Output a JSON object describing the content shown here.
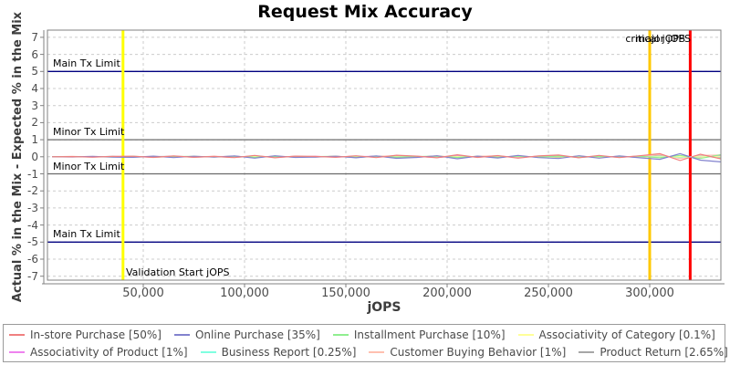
{
  "title": "Request Mix Accuracy",
  "x_axis": {
    "label": "jOPS",
    "tick_values": [
      50000,
      100000,
      150000,
      200000,
      250000,
      300000
    ],
    "tick_labels": [
      "50,000",
      "100,000",
      "150,000",
      "200,000",
      "250,000",
      "300,000"
    ]
  },
  "y_axis": {
    "label": "Actual % in the Mix - Expected % in the Mix",
    "tick_values": [
      7,
      6,
      5,
      4,
      3,
      2,
      1,
      0,
      -1,
      -2,
      -3,
      -4,
      -5,
      -6,
      -7
    ],
    "tick_labels": [
      "7",
      "6",
      "5",
      "4",
      "3",
      "2",
      "1",
      "0",
      "-1",
      "-2",
      "-3",
      "-4",
      "-5",
      "-6",
      "-7"
    ]
  },
  "markers": {
    "horizontal": [
      {
        "label": "Main Tx Limit",
        "value": 5,
        "color": "#000080"
      },
      {
        "label": "Minor Tx Limit",
        "value": 1,
        "color": "#6b6b6b"
      },
      {
        "label": "Minor Tx Limit",
        "value": -1,
        "color": "#6b6b6b"
      },
      {
        "label": "Main Tx Limit",
        "value": -5,
        "color": "#000080"
      }
    ],
    "vertical": [
      {
        "label": "Validation Start jOPS",
        "value": 40000,
        "color": "#ffff00"
      },
      {
        "label": "major jOPS",
        "value": 300000,
        "color": "#ffc800"
      },
      {
        "label": "critical jOPS",
        "value": 320000,
        "color": "#ff0000"
      }
    ]
  },
  "chart_data": {
    "type": "line",
    "title": "Request Mix Accuracy",
    "xlabel": "jOPS",
    "ylabel": "Actual % in the Mix - Expected % in the Mix",
    "xlim": [
      0,
      335000
    ],
    "ylim": [
      -7.5,
      7.5
    ],
    "grid": true,
    "legend_position": "bottom",
    "x": [
      5000,
      15000,
      25000,
      35000,
      45000,
      55000,
      65000,
      75000,
      85000,
      95000,
      105000,
      115000,
      125000,
      135000,
      145000,
      155000,
      165000,
      175000,
      185000,
      195000,
      205000,
      215000,
      225000,
      235000,
      245000,
      255000,
      265000,
      275000,
      285000,
      295000,
      305000,
      315000,
      325000,
      335000
    ],
    "series": [
      {
        "name": "In-store Purchase [50%]",
        "color": "#f08080",
        "values": [
          0.0,
          0.01,
          -0.02,
          0.02,
          0.03,
          -0.04,
          0.05,
          -0.03,
          0.02,
          -0.05,
          0.08,
          -0.06,
          0.04,
          0.02,
          -0.03,
          0.06,
          -0.05,
          0.09,
          0.04,
          -0.06,
          0.12,
          -0.04,
          0.07,
          -0.08,
          0.05,
          0.1,
          -0.06,
          0.08,
          -0.05,
          0.06,
          0.18,
          -0.22,
          0.15,
          -0.12
        ]
      },
      {
        "name": "Online Purchase [35%]",
        "color": "#8282ce",
        "values": [
          0.0,
          -0.01,
          0.02,
          -0.02,
          -0.03,
          0.04,
          -0.05,
          0.03,
          -0.02,
          0.05,
          -0.08,
          0.06,
          -0.04,
          -0.02,
          0.03,
          -0.06,
          0.05,
          -0.09,
          -0.04,
          0.06,
          -0.12,
          0.04,
          -0.07,
          0.08,
          -0.05,
          -0.1,
          0.06,
          -0.08,
          0.05,
          -0.06,
          -0.15,
          0.18,
          -0.2,
          -0.3
        ]
      },
      {
        "name": "Installment Purchase [10%]",
        "color": "#90ee90",
        "values": [
          0.0,
          0.01,
          0.0,
          -0.01,
          0.02,
          -0.02,
          0.01,
          0.02,
          -0.01,
          0.03,
          -0.03,
          0.02,
          -0.02,
          0.01,
          0.02,
          -0.03,
          0.03,
          -0.02,
          0.01,
          0.04,
          -0.04,
          0.02,
          -0.03,
          0.03,
          -0.02,
          0.04,
          -0.03,
          0.02,
          -0.02,
          0.03,
          -0.06,
          0.08,
          -0.1,
          0.12
        ]
      },
      {
        "name": "Associativity of Category [0.1%]",
        "color": "#ffff99",
        "values": [
          0.0,
          0.005,
          -0.005,
          0.0,
          0.005,
          0.0,
          -0.005,
          0.005,
          0.0,
          -0.005,
          0.01,
          -0.01,
          0.005,
          0.0,
          -0.005,
          0.01,
          -0.005,
          0.005,
          0.0,
          -0.01,
          0.01,
          0.0,
          -0.005,
          0.005,
          0.0,
          -0.005,
          0.01,
          -0.005,
          0.0,
          0.005,
          -0.01,
          0.01,
          -0.005,
          0.005
        ]
      },
      {
        "name": "Associativity of Product [1%]",
        "color": "#ee82ee",
        "values": [
          0.0,
          0.01,
          -0.01,
          0.01,
          0.0,
          -0.02,
          0.02,
          -0.01,
          0.01,
          0.02,
          -0.02,
          0.01,
          -0.01,
          0.02,
          -0.02,
          0.01,
          0.02,
          -0.01,
          0.01,
          -0.03,
          0.03,
          -0.01,
          0.02,
          -0.02,
          0.01,
          0.03,
          -0.02,
          0.01,
          -0.01,
          0.02,
          -0.04,
          0.05,
          -0.03,
          0.06
        ]
      },
      {
        "name": "Business Report [0.25%]",
        "color": "#7fffe0",
        "values": [
          0.0,
          0.005,
          0.01,
          -0.01,
          0.005,
          0.01,
          -0.005,
          0.01,
          -0.01,
          0.005,
          0.015,
          -0.01,
          0.01,
          -0.005,
          0.01,
          -0.015,
          0.01,
          0.005,
          -0.01,
          0.015,
          -0.01,
          0.01,
          -0.005,
          0.01,
          -0.01,
          0.005,
          0.015,
          -0.01,
          0.005,
          -0.01,
          0.02,
          -0.03,
          0.02,
          -0.02
        ]
      },
      {
        "name": "Customer Buying Behavior [1%]",
        "color": "#ffc0b0",
        "values": [
          0.0,
          0.02,
          -0.02,
          0.01,
          0.03,
          -0.03,
          0.02,
          -0.02,
          0.03,
          -0.04,
          0.05,
          -0.03,
          0.02,
          -0.02,
          0.04,
          -0.05,
          0.03,
          0.05,
          -0.04,
          0.06,
          -0.05,
          0.03,
          0.05,
          -0.04,
          0.03,
          0.06,
          -0.05,
          0.04,
          -0.03,
          0.05,
          0.12,
          -0.1,
          0.08,
          0.1
        ]
      },
      {
        "name": "Product Return [2.65%]",
        "color": "#a6a6a6",
        "values": [
          0.0,
          0.01,
          -0.01,
          0.02,
          -0.02,
          0.01,
          0.02,
          -0.02,
          0.01,
          -0.03,
          0.03,
          -0.02,
          0.02,
          -0.01,
          0.02,
          -0.03,
          0.04,
          -0.03,
          0.02,
          -0.04,
          0.04,
          -0.02,
          0.03,
          -0.03,
          0.02,
          -0.04,
          0.03,
          -0.02,
          0.02,
          -0.03,
          0.05,
          -0.06,
          0.04,
          -0.05
        ]
      }
    ],
    "legend_rows": [
      [
        0,
        1,
        2,
        3
      ],
      [
        4,
        5,
        6,
        7
      ]
    ]
  }
}
